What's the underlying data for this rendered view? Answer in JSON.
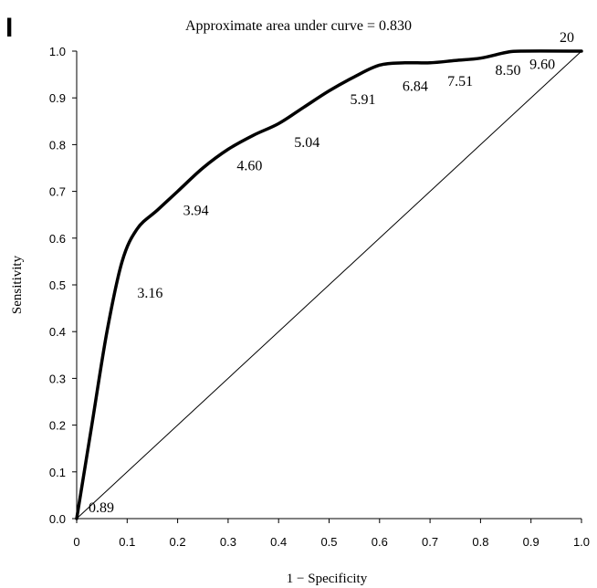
{
  "chart_data": {
    "type": "line",
    "panel_label": "I",
    "title": "Approximate area under curve = 0.830",
    "xlabel": "1 − Specificity",
    "ylabel": "Sensitivity",
    "xlim": [
      0,
      1
    ],
    "ylim": [
      0,
      1
    ],
    "xticks": [
      "0",
      "0.1",
      "0.2",
      "0.3",
      "0.4",
      "0.5",
      "0.6",
      "0.7",
      "0.8",
      "0.9",
      "1.0"
    ],
    "yticks": [
      "0.0",
      "0.1",
      "0.2",
      "0.3",
      "0.4",
      "0.5",
      "0.6",
      "0.7",
      "0.8",
      "0.9",
      "1.0"
    ],
    "grid": false,
    "series": [
      {
        "style": "thick",
        "x": [
          0,
          0.03,
          0.06,
          0.09,
          0.12,
          0.16,
          0.2,
          0.25,
          0.3,
          0.35,
          0.4,
          0.45,
          0.5,
          0.55,
          0.6,
          0.65,
          0.7,
          0.75,
          0.8,
          0.85,
          0.88,
          1.0
        ],
        "y": [
          0,
          0.2,
          0.4,
          0.55,
          0.62,
          0.66,
          0.7,
          0.75,
          0.79,
          0.82,
          0.845,
          0.88,
          0.915,
          0.945,
          0.97,
          0.975,
          0.975,
          0.98,
          0.985,
          0.997,
          1.0,
          1.0
        ]
      },
      {
        "style": "thin",
        "x": [
          0,
          1
        ],
        "y": [
          0,
          1
        ]
      }
    ],
    "annotations": [
      {
        "text": "0.89",
        "x": 0.0,
        "y": 0.0
      },
      {
        "text": "3.16",
        "x": 0.12,
        "y": 0.52
      },
      {
        "text": "3.94",
        "x": 0.2,
        "y": 0.7
      },
      {
        "text": "4.60",
        "x": 0.31,
        "y": 0.8
      },
      {
        "text": "5.04",
        "x": 0.42,
        "y": 0.85
      },
      {
        "text": "5.91",
        "x": 0.52,
        "y": 0.93
      },
      {
        "text": "6.84",
        "x": 0.62,
        "y": 0.97
      },
      {
        "text": "7.51",
        "x": 0.72,
        "y": 0.975
      },
      {
        "text": "8.50",
        "x": 0.82,
        "y": 0.99
      },
      {
        "text": "9.60",
        "x": 0.89,
        "y": 0.997
      },
      {
        "text": "20",
        "x": 1.0,
        "y": 1.0
      }
    ]
  }
}
